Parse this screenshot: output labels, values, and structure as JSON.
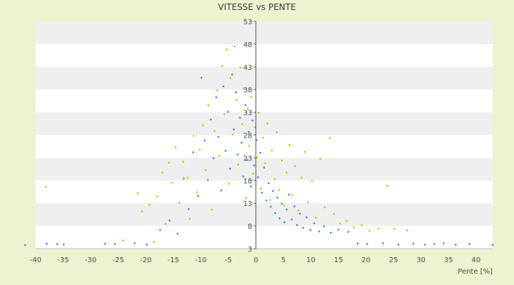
{
  "chart_data": {
    "type": "scatter",
    "title": "VITESSE vs PENTE",
    "xlabel": "Pente [%]",
    "ylabel": "",
    "xlim": [
      -40,
      43
    ],
    "ylim": [
      3,
      53
    ],
    "grid": true,
    "x_ticks": [
      -40,
      -35,
      -30,
      -25,
      -20,
      -15,
      -10,
      -5,
      0,
      5,
      10,
      15,
      20,
      25,
      30,
      35,
      40
    ],
    "y_ticks": [
      3,
      8,
      13,
      18,
      23,
      28,
      33,
      38,
      43,
      48,
      53
    ],
    "colors": {
      "background": "#edf2d0",
      "plot": "#ffffff",
      "band": "#efefef",
      "series_a": "#c8c800",
      "series_b": "#3a8fd4"
    },
    "series": [
      {
        "values": [
          [
            -38.2,
            16.6
          ],
          [
            -24.1,
            4.8
          ],
          [
            -21.5,
            15.2
          ],
          [
            -20.7,
            11.2
          ],
          [
            -19.3,
            12.7
          ],
          [
            -18.5,
            4.5
          ],
          [
            -17.9,
            14.5
          ],
          [
            -17.0,
            19.8
          ],
          [
            -16.4,
            8.4
          ],
          [
            -15.8,
            21.9
          ],
          [
            -15.3,
            17.5
          ],
          [
            -14.6,
            25.3
          ],
          [
            -13.9,
            13.1
          ],
          [
            -13.2,
            22.1
          ],
          [
            -12.4,
            18.6
          ],
          [
            -12.0,
            9.6
          ],
          [
            -11.3,
            27.8
          ],
          [
            -10.7,
            15.4
          ],
          [
            -10.2,
            24.8
          ],
          [
            -9.6,
            30.1
          ],
          [
            -9.1,
            20.3
          ],
          [
            -8.6,
            34.5
          ],
          [
            -8.0,
            11.6
          ],
          [
            -7.5,
            28.9
          ],
          [
            -7.0,
            37.8
          ],
          [
            -6.6,
            23.4
          ],
          [
            -6.1,
            43.2
          ],
          [
            -5.7,
            32.6
          ],
          [
            -5.3,
            46.8
          ],
          [
            -4.9,
            17.3
          ],
          [
            -4.6,
            40.5
          ],
          [
            -4.2,
            28.1
          ],
          [
            -3.9,
            47.5
          ],
          [
            -3.5,
            35.7
          ],
          [
            -3.2,
            21.5
          ],
          [
            -2.8,
            42.9
          ],
          [
            -2.5,
            30.4
          ],
          [
            -2.2,
            38.2
          ],
          [
            -1.8,
            14.1
          ],
          [
            -1.5,
            33.8
          ],
          [
            -1.2,
            25.6
          ],
          [
            -0.8,
            36.4
          ],
          [
            -0.5,
            19.5
          ],
          [
            -0.2,
            29.7
          ],
          [
            0.2,
            23.1
          ],
          [
            0.5,
            32.9
          ],
          [
            0.9,
            16.2
          ],
          [
            1.3,
            27.4
          ],
          [
            1.7,
            21.8
          ],
          [
            2.1,
            30.5
          ],
          [
            2.5,
            13.7
          ],
          [
            2.9,
            24.6
          ],
          [
            3.4,
            18.3
          ],
          [
            3.8,
            28.6
          ],
          [
            4.2,
            15.9
          ],
          [
            4.7,
            22.4
          ],
          [
            5.1,
            12.5
          ],
          [
            5.6,
            19.7
          ],
          [
            6.1,
            25.8
          ],
          [
            6.6,
            14.8
          ],
          [
            7.1,
            21.2
          ],
          [
            7.7,
            11.4
          ],
          [
            8.3,
            18.6
          ],
          [
            8.9,
            24.3
          ],
          [
            9.5,
            13.2
          ],
          [
            10.2,
            17.9
          ],
          [
            10.9,
            9.8
          ],
          [
            11.7,
            22.7
          ],
          [
            12.5,
            12.1
          ],
          [
            13.4,
            27.3
          ],
          [
            14.2,
            10.6
          ],
          [
            15.3,
            8.5
          ],
          [
            16.5,
            9.1
          ],
          [
            17.8,
            7.7
          ],
          [
            19.2,
            8.2
          ],
          [
            20.6,
            6.9
          ],
          [
            22.3,
            7.4
          ],
          [
            23.9,
            16.8
          ],
          [
            25.2,
            7.3
          ],
          [
            27.5,
            7.0
          ]
        ]
      },
      {
        "values": [
          [
            -41.9,
            3.8
          ],
          [
            -38.0,
            4.1
          ],
          [
            -36.1,
            4.0
          ],
          [
            -34.9,
            3.9
          ],
          [
            -27.4,
            4.1
          ],
          [
            -25.6,
            4.0
          ],
          [
            -22.0,
            4.2
          ],
          [
            -19.8,
            3.9
          ],
          [
            -17.4,
            7.1
          ],
          [
            -15.7,
            9.2
          ],
          [
            -14.2,
            6.3
          ],
          [
            -13.1,
            18.4
          ],
          [
            -12.2,
            11.7
          ],
          [
            -11.4,
            24.2
          ],
          [
            -10.5,
            14.6
          ],
          [
            -9.9,
            40.6
          ],
          [
            -9.3,
            26.8
          ],
          [
            -8.7,
            18.1
          ],
          [
            -8.2,
            31.4
          ],
          [
            -7.7,
            22.9
          ],
          [
            -7.2,
            36.3
          ],
          [
            -6.8,
            27.6
          ],
          [
            -6.3,
            15.8
          ],
          [
            -5.9,
            38.7
          ],
          [
            -5.5,
            24.5
          ],
          [
            -5.1,
            33.1
          ],
          [
            -4.7,
            20.6
          ],
          [
            -4.3,
            41.3
          ],
          [
            -4.0,
            29.2
          ],
          [
            -3.6,
            37.4
          ],
          [
            -3.3,
            23.7
          ],
          [
            -2.9,
            31.8
          ],
          [
            -2.6,
            26.3
          ],
          [
            -2.3,
            18.9
          ],
          [
            -1.9,
            34.6
          ],
          [
            -1.6,
            22.5
          ],
          [
            -1.3,
            28.7
          ],
          [
            -0.9,
            16.7
          ],
          [
            -0.6,
            31.2
          ],
          [
            -0.3,
            21.3
          ],
          [
            0.1,
            26.9
          ],
          [
            0.4,
            18.7
          ],
          [
            0.8,
            24.1
          ],
          [
            1.1,
            15.3
          ],
          [
            1.5,
            20.8
          ],
          [
            1.9,
            13.6
          ],
          [
            2.3,
            17.4
          ],
          [
            2.7,
            12.2
          ],
          [
            3.1,
            15.7
          ],
          [
            3.5,
            10.8
          ],
          [
            3.9,
            14.2
          ],
          [
            4.3,
            9.7
          ],
          [
            4.7,
            12.9
          ],
          [
            5.2,
            8.8
          ],
          [
            5.6,
            11.6
          ],
          [
            6.0,
            14.9
          ],
          [
            6.5,
            9.4
          ],
          [
            7.0,
            12.3
          ],
          [
            7.5,
            8.2
          ],
          [
            8.0,
            10.7
          ],
          [
            8.6,
            7.6
          ],
          [
            9.2,
            9.9
          ],
          [
            9.9,
            7.1
          ],
          [
            10.6,
            8.6
          ],
          [
            11.5,
            6.8
          ],
          [
            12.4,
            7.9
          ],
          [
            13.6,
            6.5
          ],
          [
            15.0,
            7.2
          ],
          [
            16.8,
            6.7
          ],
          [
            18.5,
            4.1
          ],
          [
            20.2,
            4.0
          ],
          [
            23.1,
            4.2
          ],
          [
            25.9,
            3.9
          ],
          [
            28.6,
            4.1
          ],
          [
            30.7,
            3.9
          ],
          [
            32.4,
            4.0
          ],
          [
            34.1,
            4.2
          ],
          [
            36.3,
            3.9
          ],
          [
            38.8,
            4.0
          ],
          [
            43.0,
            3.8
          ]
        ]
      }
    ]
  }
}
